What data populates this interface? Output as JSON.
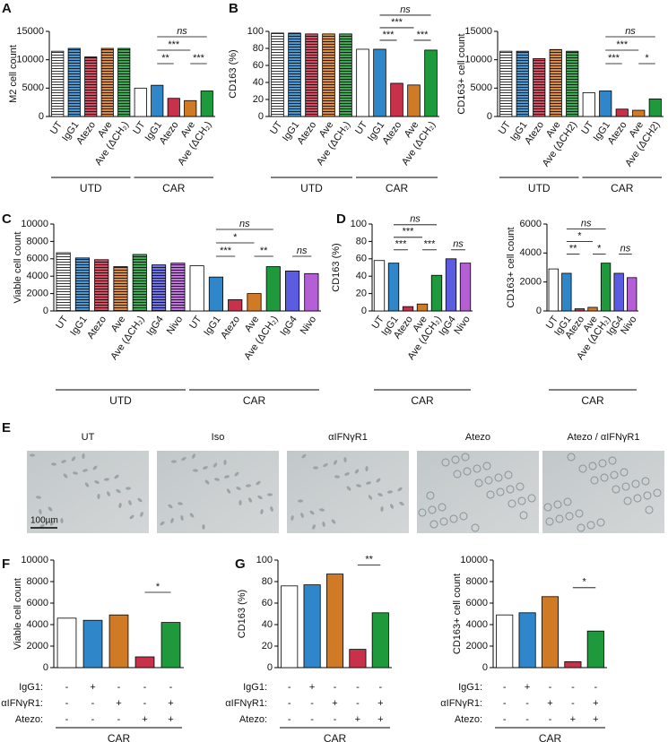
{
  "chart_data": [
    {
      "type": "bar",
      "panel": "A",
      "ylabel": "M2 cell count",
      "ylim": [
        0,
        15000
      ],
      "yticks": [
        0,
        5000,
        10000,
        15000
      ],
      "categories": [
        "UT",
        "IgG1",
        "Atezo",
        "Ave",
        "Ave (ΔCH₂)"
      ],
      "colors": [
        "#ffffff",
        "#2f86c8",
        "#c8314a",
        "#d07a26",
        "#1e9a3c"
      ],
      "series": [
        {
          "name": "UTD",
          "hatched": true,
          "values": [
            11500,
            12000,
            10500,
            12000,
            12000
          ]
        },
        {
          "name": "CAR",
          "values": [
            5000,
            5500,
            3200,
            2800,
            4500
          ],
          "comparisons": [
            {
              "from": 1,
              "to": 4,
              "label": "ns"
            },
            {
              "from": 1,
              "to": 3,
              "label": "***"
            },
            {
              "from": 1,
              "to": 2,
              "label": "**"
            },
            {
              "from": 3,
              "to": 4,
              "label": "***"
            }
          ]
        }
      ]
    },
    {
      "type": "bar",
      "panel": "B",
      "ylabel": "CD163 (%)",
      "ylim": [
        0,
        100
      ],
      "yticks": [
        0,
        20,
        40,
        60,
        80,
        100
      ],
      "categories": [
        "UT",
        "IgG1",
        "Atezo",
        "Ave",
        "Ave (ΔCH₂)"
      ],
      "colors": [
        "#ffffff",
        "#2f86c8",
        "#c8314a",
        "#d07a26",
        "#1e9a3c"
      ],
      "series": [
        {
          "name": "UTD",
          "hatched": true,
          "values": [
            98,
            98,
            97,
            97,
            97
          ]
        },
        {
          "name": "CAR",
          "values": [
            79,
            79,
            39,
            37,
            78
          ],
          "comparisons": [
            {
              "from": 1,
              "to": 4,
              "label": "ns"
            },
            {
              "from": 1,
              "to": 3,
              "label": "***"
            },
            {
              "from": 1,
              "to": 2,
              "label": "***"
            },
            {
              "from": 3,
              "to": 4,
              "label": "***"
            }
          ]
        }
      ]
    },
    {
      "type": "bar",
      "ylabel": "CD163+ cell count",
      "ylim": [
        0,
        15000
      ],
      "yticks": [
        0,
        5000,
        10000,
        15000
      ],
      "categories": [
        "UT",
        "IgG1",
        "Atezo",
        "Ave",
        "Ave (ΔCH2)"
      ],
      "colors": [
        "#ffffff",
        "#2f86c8",
        "#c8314a",
        "#d07a26",
        "#1e9a3c"
      ],
      "series": [
        {
          "name": "UTD",
          "hatched": true,
          "values": [
            11500,
            11500,
            10200,
            11800,
            11500
          ]
        },
        {
          "name": "CAR",
          "values": [
            4200,
            4500,
            1300,
            1100,
            3100
          ],
          "comparisons": [
            {
              "from": 1,
              "to": 4,
              "label": "ns"
            },
            {
              "from": 1,
              "to": 3,
              "label": "***"
            },
            {
              "from": 1,
              "to": 2,
              "label": "***"
            },
            {
              "from": 3,
              "to": 4,
              "label": "*"
            }
          ]
        }
      ]
    },
    {
      "type": "bar",
      "panel": "C",
      "ylabel": "Viable cell count",
      "ylim": [
        0,
        10000
      ],
      "yticks": [
        0,
        2000,
        4000,
        6000,
        8000,
        10000
      ],
      "categories": [
        "UT",
        "IgG1",
        "Atezo",
        "Ave",
        "Ave (ΔCH₂)",
        "IgG4",
        "Nivo"
      ],
      "colors": [
        "#ffffff",
        "#2f86c8",
        "#c8314a",
        "#d07a26",
        "#1e9a3c",
        "#5b5ce0",
        "#b45fd6"
      ],
      "series": [
        {
          "name": "UTD",
          "hatched": true,
          "values": [
            6700,
            6100,
            5900,
            5100,
            6500,
            5300,
            5500
          ]
        },
        {
          "name": "CAR",
          "values": [
            5200,
            3900,
            1300,
            2000,
            5100,
            4600,
            4300
          ],
          "comparisons": [
            {
              "from": 1,
              "to": 4,
              "label": "ns"
            },
            {
              "from": 1,
              "to": 3,
              "label": "*"
            },
            {
              "from": 1,
              "to": 2,
              "label": "***"
            },
            {
              "from": 3,
              "to": 4,
              "label": "**"
            },
            {
              "from": 5,
              "to": 6,
              "label": "ns"
            }
          ]
        }
      ]
    },
    {
      "type": "bar",
      "panel": "D",
      "ylabel": "CD163 (%)",
      "ylim": [
        0,
        100
      ],
      "yticks": [
        0,
        20,
        40,
        60,
        80,
        100
      ],
      "categories": [
        "UT",
        "IgG1",
        "Atezo",
        "Ave",
        "Ave (ΔCH₂)",
        "IgG4",
        "Nivo"
      ],
      "colors": [
        "#ffffff",
        "#2f86c8",
        "#c8314a",
        "#d07a26",
        "#1e9a3c",
        "#5b5ce0",
        "#b45fd6"
      ],
      "series": [
        {
          "name": "CAR",
          "values": [
            58,
            55,
            5,
            8,
            41,
            60,
            55
          ],
          "comparisons": [
            {
              "from": 1,
              "to": 4,
              "label": "ns"
            },
            {
              "from": 1,
              "to": 3,
              "label": "***"
            },
            {
              "from": 1,
              "to": 2,
              "label": "***"
            },
            {
              "from": 3,
              "to": 4,
              "label": "***"
            },
            {
              "from": 5,
              "to": 6,
              "label": "ns"
            }
          ]
        }
      ]
    },
    {
      "type": "bar",
      "ylabel": "CD163+ cell count",
      "ylim": [
        0,
        6000
      ],
      "yticks": [
        0,
        2000,
        4000,
        6000
      ],
      "categories": [
        "UT",
        "IgG1",
        "Atezo",
        "Ave",
        "Ave (ΔCH₂)",
        "IgG4",
        "Nivo"
      ],
      "colors": [
        "#ffffff",
        "#2f86c8",
        "#c8314a",
        "#d07a26",
        "#1e9a3c",
        "#5b5ce0",
        "#b45fd6"
      ],
      "series": [
        {
          "name": "CAR",
          "values": [
            2900,
            2600,
            150,
            250,
            3300,
            2600,
            2300
          ],
          "comparisons": [
            {
              "from": 1,
              "to": 4,
              "label": "ns"
            },
            {
              "from": 1,
              "to": 3,
              "label": "*"
            },
            {
              "from": 1,
              "to": 2,
              "label": "**"
            },
            {
              "from": 3,
              "to": 4,
              "label": "*"
            },
            {
              "from": 5,
              "to": 6,
              "label": "ns"
            }
          ]
        }
      ]
    },
    {
      "type": "bar",
      "panel": "F",
      "ylabel": "Viable cell count",
      "ylim": [
        0,
        10000
      ],
      "yticks": [
        0,
        2000,
        4000,
        6000,
        8000,
        10000
      ],
      "colors": [
        "#ffffff",
        "#2f86c8",
        "#d07a26",
        "#c8314a",
        "#1e9a3c"
      ],
      "conditions": [
        {
          "name": "IgG1:",
          "marks": [
            "-",
            "+",
            "-",
            "-",
            "-"
          ]
        },
        {
          "name": "αIFNγR1:",
          "marks": [
            "-",
            "-",
            "+",
            "-",
            "+"
          ]
        },
        {
          "name": "Atezo:",
          "marks": [
            "-",
            "-",
            "-",
            "+",
            "+"
          ]
        }
      ],
      "series": [
        {
          "name": "CAR",
          "values": [
            4600,
            4400,
            4900,
            1000,
            4200
          ],
          "comparisons": [
            {
              "from": 3,
              "to": 4,
              "label": "*"
            }
          ]
        }
      ]
    },
    {
      "type": "bar",
      "panel": "G",
      "ylabel": "CD163 (%)",
      "ylim": [
        0,
        100
      ],
      "yticks": [
        0,
        20,
        40,
        60,
        80,
        100
      ],
      "colors": [
        "#ffffff",
        "#2f86c8",
        "#d07a26",
        "#c8314a",
        "#1e9a3c"
      ],
      "conditions": [
        {
          "name": "IgG1:",
          "marks": [
            "-",
            "+",
            "-",
            "-",
            "-"
          ]
        },
        {
          "name": "αIFNγR1:",
          "marks": [
            "-",
            "-",
            "+",
            "-",
            "+"
          ]
        },
        {
          "name": "Atezo:",
          "marks": [
            "-",
            "-",
            "-",
            "+",
            "+"
          ]
        }
      ],
      "series": [
        {
          "name": "CAR",
          "values": [
            76,
            77,
            87,
            17,
            51
          ],
          "comparisons": [
            {
              "from": 3,
              "to": 4,
              "label": "**"
            }
          ]
        }
      ]
    },
    {
      "type": "bar",
      "ylabel": "CD163+ cell count",
      "ylim": [
        0,
        10000
      ],
      "yticks": [
        0,
        2000,
        4000,
        6000,
        8000,
        10000
      ],
      "colors": [
        "#ffffff",
        "#2f86c8",
        "#d07a26",
        "#c8314a",
        "#1e9a3c"
      ],
      "conditions": [
        {
          "name": "IgG1:",
          "marks": [
            "-",
            "+",
            "-",
            "-",
            "-"
          ]
        },
        {
          "name": "αIFNγR1:",
          "marks": [
            "-",
            "-",
            "+",
            "-",
            "+"
          ]
        },
        {
          "name": "Atezo:",
          "marks": [
            "-",
            "-",
            "-",
            "+",
            "+"
          ]
        }
      ],
      "series": [
        {
          "name": "CAR",
          "values": [
            4900,
            5100,
            6600,
            550,
            3400
          ],
          "comparisons": [
            {
              "from": 3,
              "to": 4,
              "label": "*"
            }
          ]
        }
      ]
    }
  ],
  "images": {
    "panel": "E",
    "labels": [
      "UT",
      "Iso",
      "αIFNγR1",
      "Atezo",
      "Atezo / αIFNγR1"
    ],
    "scale_bar": "100µm"
  }
}
